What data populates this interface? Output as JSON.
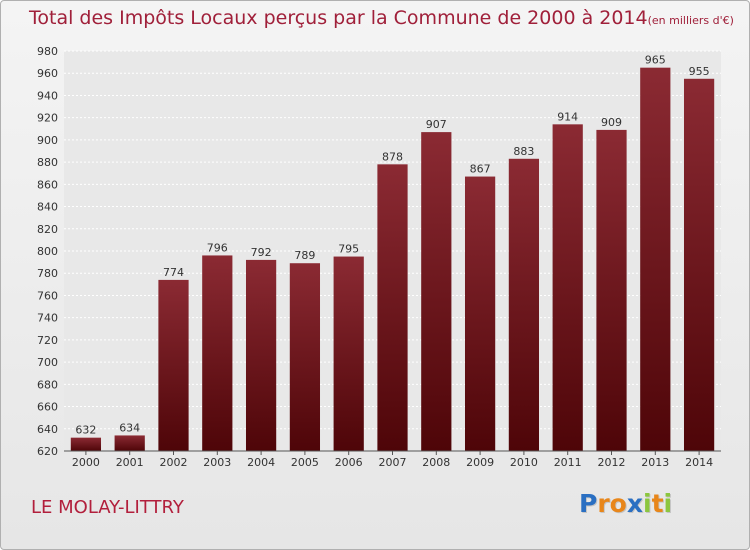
{
  "chart_data": {
    "type": "bar",
    "title": "Total des Impôts Locaux perçus par la Commune de 2000 à 2014",
    "subtitle": "(en milliers d'€)",
    "categories": [
      "2000",
      "2001",
      "2002",
      "2003",
      "2004",
      "2005",
      "2006",
      "2007",
      "2008",
      "2009",
      "2010",
      "2011",
      "2012",
      "2013",
      "2014"
    ],
    "values": [
      632,
      634,
      774,
      796,
      792,
      789,
      795,
      878,
      907,
      867,
      883,
      914,
      909,
      965,
      955
    ],
    "data_labels": [
      "632",
      "634",
      "774",
      "796",
      "792",
      "789",
      "795",
      "878",
      "907",
      "867",
      "883",
      "914",
      "909",
      "965",
      "955"
    ],
    "ylim": [
      620,
      980
    ],
    "yticks": [
      "620",
      "640",
      "660",
      "680",
      "700",
      "720",
      "740",
      "760",
      "780",
      "800",
      "820",
      "840",
      "860",
      "880",
      "900",
      "920",
      "940",
      "960",
      "980"
    ],
    "grid": true,
    "bar_color": "#7a1a22"
  },
  "commune": "LE MOLAY-LITTRY",
  "logo": {
    "letters": [
      "P",
      "r",
      "o",
      "x",
      "i",
      "t",
      "i"
    ],
    "colors": [
      "#2a6fc2",
      "#e8861a",
      "#e8861a",
      "#2a6fc2",
      "#8cc63f",
      "#e8861a",
      "#8cc63f"
    ]
  }
}
